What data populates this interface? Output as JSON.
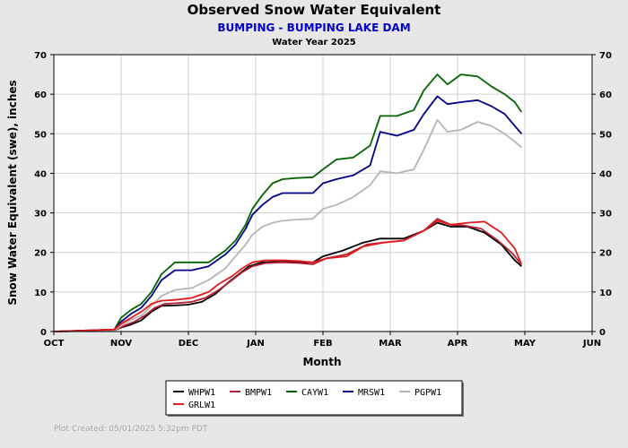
{
  "chart_data": {
    "type": "line",
    "title": "Observed Snow Water Equivalent",
    "subtitle": "BUMPING - BUMPING LAKE DAM",
    "subtitle2": "Water Year 2025",
    "xlabel": "Month",
    "ylabel": "Snow Water Equivalent (swe),  inches",
    "x_categories": [
      "OCT",
      "NOV",
      "DEC",
      "JAN",
      "FEB",
      "MAR",
      "APR",
      "MAY",
      "JUN"
    ],
    "ylim": [
      0,
      70
    ],
    "yticks": [
      "0",
      "10",
      "20",
      "30",
      "40",
      "50",
      "60",
      "70"
    ],
    "grid": true,
    "legend_placement": "bottom-center",
    "footer": "Plot Created:  05/01/2025 5:32pm PDT",
    "series": [
      {
        "name": "WHPW1",
        "color": "#000000",
        "points": [
          [
            0,
            0
          ],
          [
            0.9,
            0.3
          ],
          [
            1.0,
            1.0
          ],
          [
            1.15,
            1.8
          ],
          [
            1.3,
            2.8
          ],
          [
            1.45,
            5.0
          ],
          [
            1.6,
            6.5
          ],
          [
            1.8,
            6.6
          ],
          [
            2.0,
            6.8
          ],
          [
            2.2,
            7.5
          ],
          [
            2.4,
            9.5
          ],
          [
            2.6,
            12.5
          ],
          [
            2.75,
            14.5
          ],
          [
            2.9,
            16.5
          ],
          [
            3.1,
            17.5
          ],
          [
            3.3,
            17.6
          ],
          [
            3.6,
            17.6
          ],
          [
            3.85,
            17.5
          ],
          [
            4.0,
            19.0
          ],
          [
            4.3,
            20.5
          ],
          [
            4.6,
            22.5
          ],
          [
            4.85,
            23.5
          ],
          [
            5.2,
            23.5
          ],
          [
            5.5,
            25.5
          ],
          [
            5.7,
            27.5
          ],
          [
            5.9,
            26.5
          ],
          [
            6.15,
            26.5
          ],
          [
            6.4,
            25.0
          ],
          [
            6.65,
            22.0
          ],
          [
            6.85,
            18.0
          ],
          [
            6.95,
            16.5
          ]
        ]
      },
      {
        "name": "BMPW1",
        "color": "#b22234",
        "points": [
          [
            0,
            0
          ],
          [
            0.9,
            0.3
          ],
          [
            1.05,
            1.5
          ],
          [
            1.2,
            2.5
          ],
          [
            1.35,
            4.0
          ],
          [
            1.5,
            6.0
          ],
          [
            1.65,
            7.0
          ],
          [
            1.85,
            7.2
          ],
          [
            2.05,
            7.5
          ],
          [
            2.25,
            8.5
          ],
          [
            2.45,
            10.5
          ],
          [
            2.65,
            13.0
          ],
          [
            2.8,
            15.0
          ],
          [
            2.95,
            16.5
          ],
          [
            3.15,
            17.3
          ],
          [
            3.4,
            17.5
          ],
          [
            3.65,
            17.3
          ],
          [
            3.85,
            17.0
          ],
          [
            4.05,
            18.5
          ],
          [
            4.35,
            19.5
          ],
          [
            4.65,
            22.0
          ],
          [
            4.9,
            22.5
          ],
          [
            5.2,
            23.0
          ],
          [
            5.5,
            25.5
          ],
          [
            5.7,
            28.5
          ],
          [
            5.9,
            27.0
          ],
          [
            6.1,
            26.8
          ],
          [
            6.35,
            26.0
          ],
          [
            6.6,
            23.0
          ],
          [
            6.8,
            20.0
          ],
          [
            6.95,
            17.0
          ]
        ]
      },
      {
        "name": "CAYW1",
        "color": "#006400",
        "points": [
          [
            0,
            0
          ],
          [
            0.9,
            0.5
          ],
          [
            1.0,
            3.5
          ],
          [
            1.15,
            5.5
          ],
          [
            1.3,
            7.0
          ],
          [
            1.45,
            10.0
          ],
          [
            1.6,
            14.5
          ],
          [
            1.8,
            17.5
          ],
          [
            2.05,
            17.5
          ],
          [
            2.3,
            17.5
          ],
          [
            2.55,
            20.5
          ],
          [
            2.7,
            23.0
          ],
          [
            2.85,
            27.0
          ],
          [
            2.95,
            31.0
          ],
          [
            3.1,
            34.5
          ],
          [
            3.25,
            37.5
          ],
          [
            3.4,
            38.5
          ],
          [
            3.6,
            38.8
          ],
          [
            3.85,
            39.0
          ],
          [
            4.0,
            41.0
          ],
          [
            4.2,
            43.5
          ],
          [
            4.45,
            44.0
          ],
          [
            4.7,
            47.0
          ],
          [
            4.85,
            54.5
          ],
          [
            5.1,
            54.5
          ],
          [
            5.35,
            56.0
          ],
          [
            5.5,
            61.0
          ],
          [
            5.7,
            65.0
          ],
          [
            5.85,
            62.5
          ],
          [
            6.05,
            65.0
          ],
          [
            6.3,
            64.5
          ],
          [
            6.5,
            62.0
          ],
          [
            6.7,
            60.0
          ],
          [
            6.85,
            58.0
          ],
          [
            6.95,
            55.5
          ]
        ]
      },
      {
        "name": "MRSW1",
        "color": "#00008b",
        "points": [
          [
            0,
            0
          ],
          [
            0.9,
            0.5
          ],
          [
            1.0,
            2.5
          ],
          [
            1.15,
            4.5
          ],
          [
            1.3,
            6.0
          ],
          [
            1.45,
            9.0
          ],
          [
            1.6,
            13.0
          ],
          [
            1.8,
            15.5
          ],
          [
            2.05,
            15.5
          ],
          [
            2.3,
            16.5
          ],
          [
            2.55,
            19.5
          ],
          [
            2.7,
            22.0
          ],
          [
            2.85,
            26.0
          ],
          [
            2.95,
            29.5
          ],
          [
            3.1,
            32.0
          ],
          [
            3.25,
            34.0
          ],
          [
            3.4,
            35.0
          ],
          [
            3.6,
            35.0
          ],
          [
            3.85,
            35.0
          ],
          [
            4.0,
            37.5
          ],
          [
            4.2,
            38.5
          ],
          [
            4.45,
            39.5
          ],
          [
            4.7,
            42.0
          ],
          [
            4.85,
            50.5
          ],
          [
            5.1,
            49.5
          ],
          [
            5.35,
            51.0
          ],
          [
            5.5,
            55.0
          ],
          [
            5.7,
            59.5
          ],
          [
            5.85,
            57.5
          ],
          [
            6.05,
            58.0
          ],
          [
            6.3,
            58.5
          ],
          [
            6.5,
            57.0
          ],
          [
            6.7,
            55.0
          ],
          [
            6.85,
            52.0
          ],
          [
            6.95,
            50.0
          ]
        ]
      },
      {
        "name": "PGPW1",
        "color": "#b4b4b4",
        "points": [
          [
            0,
            0
          ],
          [
            0.9,
            0.3
          ],
          [
            1.0,
            1.5
          ],
          [
            1.15,
            3.0
          ],
          [
            1.3,
            4.0
          ],
          [
            1.45,
            6.5
          ],
          [
            1.6,
            9.0
          ],
          [
            1.8,
            10.5
          ],
          [
            2.05,
            11.0
          ],
          [
            2.3,
            13.0
          ],
          [
            2.55,
            16.0
          ],
          [
            2.7,
            19.0
          ],
          [
            2.85,
            22.0
          ],
          [
            2.95,
            24.5
          ],
          [
            3.1,
            26.5
          ],
          [
            3.25,
            27.5
          ],
          [
            3.4,
            28.0
          ],
          [
            3.6,
            28.3
          ],
          [
            3.85,
            28.5
          ],
          [
            4.0,
            31.0
          ],
          [
            4.2,
            32.0
          ],
          [
            4.45,
            34.0
          ],
          [
            4.7,
            37.0
          ],
          [
            4.85,
            40.5
          ],
          [
            5.1,
            40.0
          ],
          [
            5.35,
            41.0
          ],
          [
            5.5,
            46.0
          ],
          [
            5.7,
            53.5
          ],
          [
            5.85,
            50.5
          ],
          [
            6.05,
            51.0
          ],
          [
            6.3,
            53.0
          ],
          [
            6.5,
            52.0
          ],
          [
            6.7,
            50.0
          ],
          [
            6.85,
            48.0
          ],
          [
            6.95,
            46.5
          ]
        ]
      },
      {
        "name": "GRLW1",
        "color": "#e41a1c",
        "points": [
          [
            0,
            0
          ],
          [
            0.9,
            0.5
          ],
          [
            1.0,
            2.0
          ],
          [
            1.15,
            3.5
          ],
          [
            1.3,
            5.0
          ],
          [
            1.45,
            7.0
          ],
          [
            1.6,
            7.8
          ],
          [
            1.8,
            8.0
          ],
          [
            2.05,
            8.5
          ],
          [
            2.3,
            10.0
          ],
          [
            2.45,
            12.0
          ],
          [
            2.65,
            14.0
          ],
          [
            2.8,
            16.0
          ],
          [
            2.95,
            17.5
          ],
          [
            3.15,
            18.0
          ],
          [
            3.4,
            18.0
          ],
          [
            3.65,
            17.8
          ],
          [
            3.85,
            17.5
          ],
          [
            4.05,
            18.5
          ],
          [
            4.35,
            19.0
          ],
          [
            4.6,
            21.5
          ],
          [
            4.9,
            22.5
          ],
          [
            5.2,
            23.0
          ],
          [
            5.5,
            25.5
          ],
          [
            5.7,
            28.0
          ],
          [
            5.9,
            27.0
          ],
          [
            6.15,
            27.5
          ],
          [
            6.4,
            27.8
          ],
          [
            6.65,
            25.0
          ],
          [
            6.85,
            21.0
          ],
          [
            6.95,
            17.0
          ]
        ]
      }
    ]
  }
}
